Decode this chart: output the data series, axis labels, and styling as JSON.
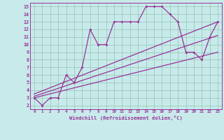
{
  "bg_color": "#c8eaea",
  "line_color": "#993399",
  "grid_color": "#99ccbb",
  "xlabel": "Windchill (Refroidissement éolien,°C)",
  "ylabel_ticks": [
    2,
    3,
    4,
    5,
    6,
    7,
    8,
    9,
    10,
    11,
    12,
    13,
    14,
    15
  ],
  "xlabel_ticks": [
    0,
    1,
    2,
    3,
    4,
    5,
    6,
    7,
    8,
    9,
    10,
    11,
    12,
    13,
    14,
    15,
    16,
    17,
    18,
    19,
    20,
    21,
    22,
    23
  ],
  "xlim": [
    -0.5,
    23.5
  ],
  "ylim": [
    1.5,
    15.5
  ],
  "main_x": [
    0,
    1,
    2,
    3,
    4,
    5,
    6,
    7,
    8,
    9,
    10,
    11,
    12,
    13,
    14,
    15,
    16,
    17,
    18,
    19,
    20,
    21,
    22,
    23
  ],
  "main_y": [
    3,
    2,
    3,
    3,
    6,
    5,
    7,
    12,
    10,
    10,
    13,
    13,
    13,
    13,
    15,
    15,
    15,
    14,
    13,
    9,
    9,
    8,
    11,
    13
  ],
  "line1_x": [
    0,
    23
  ],
  "line1_y": [
    3.0,
    9.0
  ],
  "line2_x": [
    0,
    23
  ],
  "line2_y": [
    3.2,
    11.2
  ],
  "line3_x": [
    0,
    23
  ],
  "line3_y": [
    3.5,
    13.0
  ]
}
